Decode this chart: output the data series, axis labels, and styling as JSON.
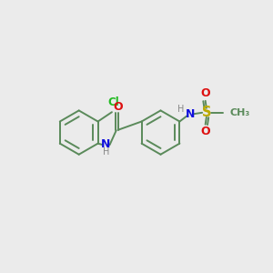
{
  "background_color": "#ebebeb",
  "figsize": [
    3.0,
    3.0
  ],
  "dpi": 100,
  "atom_colors": {
    "C": "#5a8a5a",
    "N": "#1010dd",
    "O": "#dd1010",
    "S": "#bbaa00",
    "Cl": "#22bb22",
    "H": "#888888"
  },
  "bond_color": "#5a8a5a",
  "lw": 1.4,
  "r": 0.82
}
